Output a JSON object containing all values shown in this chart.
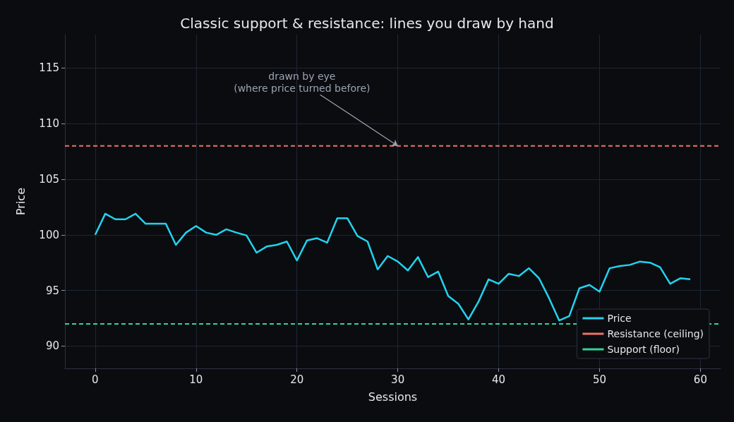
{
  "chart_data": {
    "type": "line",
    "title": "Classic support & resistance: lines you draw by hand",
    "xlabel": "Sessions",
    "ylabel": "Price",
    "x": [
      0,
      1,
      2,
      3,
      4,
      5,
      6,
      7,
      8,
      9,
      10,
      11,
      12,
      13,
      14,
      15,
      16,
      17,
      18,
      19,
      20,
      21,
      22,
      23,
      24,
      25,
      26,
      27,
      28,
      29,
      30,
      31,
      32,
      33,
      34,
      35,
      36,
      37,
      38,
      39,
      40,
      41,
      42,
      43,
      44,
      45,
      46,
      47,
      48,
      49,
      50,
      51,
      52,
      53,
      54,
      55,
      56,
      57,
      58,
      59
    ],
    "series": [
      {
        "name": "Price",
        "color": "#22d3ee",
        "values": [
          100,
          101.9,
          101.4,
          101.4,
          101.9,
          101.0,
          101.0,
          101.0,
          99.1,
          100.2,
          100.8,
          100.2,
          100.0,
          100.5,
          100.2,
          99.95,
          98.4,
          98.95,
          99.1,
          99.4,
          97.7,
          99.5,
          99.7,
          99.3,
          101.5,
          101.5,
          99.9,
          99.4,
          96.9,
          98.1,
          97.6,
          96.8,
          98.0,
          96.2,
          96.7,
          94.5,
          93.8,
          92.4,
          94.0,
          96.0,
          95.6,
          96.5,
          96.3,
          97.0,
          96.1,
          94.3,
          92.3,
          92.7,
          95.2,
          95.5,
          94.9,
          97.0,
          97.2,
          97.3,
          97.6,
          97.5,
          97.1,
          95.6,
          96.1,
          96.0
        ]
      }
    ],
    "ref_lines": [
      {
        "axis": "y",
        "value": 108,
        "label": "Resistance (ceiling)",
        "color": "#f07167",
        "line_style": "dashed"
      },
      {
        "axis": "y",
        "value": 92,
        "label": "Support (floor)",
        "color": "#34d399",
        "line_style": "dashed"
      }
    ],
    "annotations": [
      {
        "text": "drawn by eye\n(where price turned before)",
        "x": 30,
        "y": 108
      }
    ],
    "xlim": [
      -3,
      62
    ],
    "ylim": [
      88,
      118
    ],
    "xticks": [
      0,
      10,
      20,
      30,
      40,
      50,
      60
    ],
    "yticks": [
      90,
      95,
      100,
      105,
      110,
      115
    ],
    "grid": true,
    "legend": "bottom right",
    "marker": "none",
    "line_style": "solid"
  }
}
